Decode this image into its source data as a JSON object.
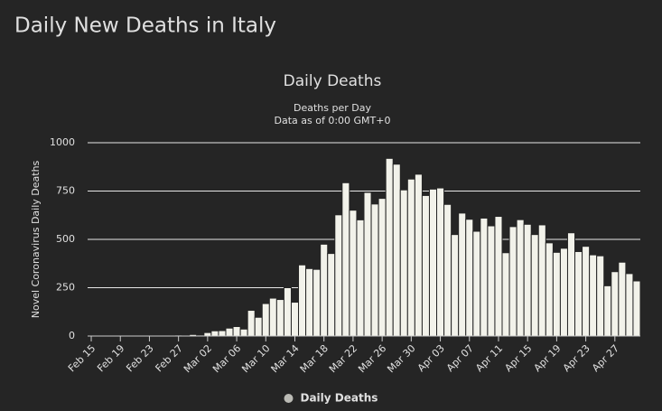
{
  "page_title": "Daily New Deaths in Italy",
  "chart_data": {
    "type": "bar",
    "title": "Daily Deaths",
    "subtitle": [
      "Deaths per Day",
      "Data as of 0:00 GMT+0"
    ],
    "y_label": "Novel Coronavirus Daily Deaths",
    "categories": [
      "Feb 15",
      null,
      null,
      null,
      "Feb 19",
      null,
      null,
      null,
      "Feb 23",
      null,
      null,
      null,
      "Feb 27",
      null,
      null,
      null,
      "Mar 02",
      null,
      null,
      null,
      "Mar 06",
      null,
      null,
      null,
      "Mar 10",
      null,
      null,
      null,
      "Mar 14",
      null,
      null,
      null,
      "Mar 18",
      null,
      null,
      null,
      "Mar 22",
      null,
      null,
      null,
      "Mar 26",
      null,
      null,
      null,
      "Mar 30",
      null,
      null,
      null,
      "Apr 03",
      null,
      null,
      null,
      "Apr 07",
      null,
      null,
      null,
      "Apr 11",
      null,
      null,
      null,
      "Apr 15",
      null,
      null,
      null,
      "Apr 19",
      null,
      null,
      null,
      "Apr 23",
      null,
      null,
      null,
      "Apr 27",
      null,
      null,
      null
    ],
    "series": [
      {
        "name": "Daily Deaths",
        "color": "#f2f2ea",
        "values": [
          0,
          0,
          0,
          0,
          0,
          0,
          1,
          1,
          1,
          4,
          3,
          2,
          5,
          4,
          8,
          5,
          18,
          27,
          28,
          41,
          49,
          36,
          133,
          97,
          168,
          196,
          189,
          250,
          175,
          368,
          349,
          345,
          475,
          427,
          627,
          793,
          651,
          601,
          743,
          683,
          712,
          919,
          889,
          756,
          812,
          837,
          727,
          760,
          766,
          681,
          525,
          636,
          604,
          542,
          610,
          570,
          619,
          431,
          566,
          602,
          578,
          525,
          575,
          482,
          433,
          454,
          534,
          437,
          464,
          420,
          415,
          260,
          333,
          382,
          323,
          285
        ]
      }
    ],
    "ylim": [
      0,
      1000
    ],
    "yticks": [
      0,
      250,
      500,
      750,
      1000
    ],
    "grid": true
  }
}
